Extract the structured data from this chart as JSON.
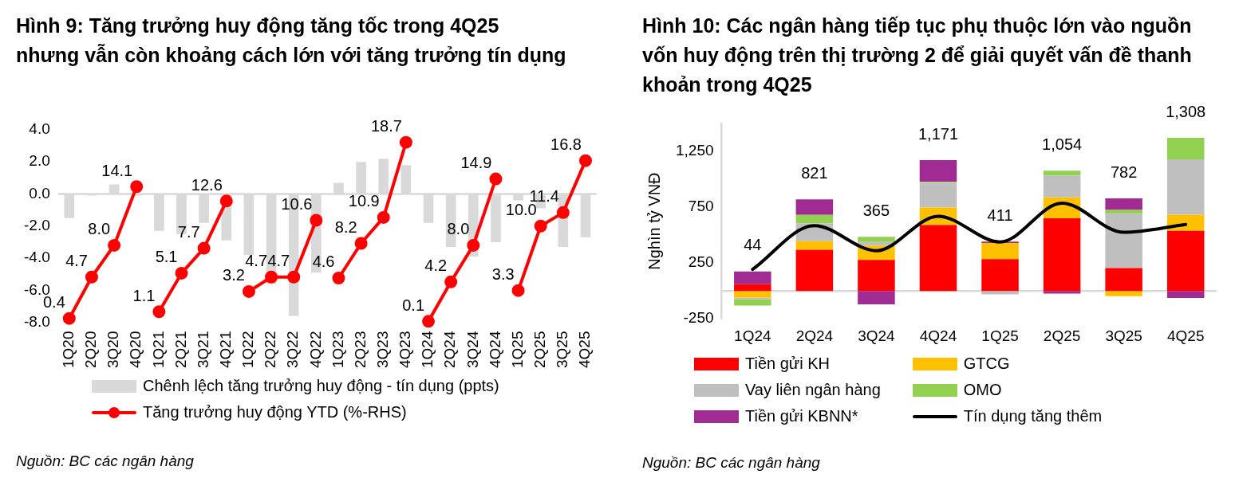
{
  "chart_data": [
    {
      "type": "bar",
      "title": "Hình 9: Tăng trưởng huy động tăng tốc trong 4Q25 nhưng vẫn còn khoảng cách lớn với tăng trưởng tín dụng",
      "categories": [
        "1Q20",
        "2Q20",
        "3Q20",
        "4Q20",
        "1Q21",
        "2Q21",
        "3Q21",
        "4Q21",
        "1Q22",
        "2Q22",
        "3Q22",
        "4Q22",
        "1Q23",
        "2Q23",
        "3Q23",
        "4Q23",
        "1Q24",
        "2Q24",
        "3Q24",
        "4Q24",
        "1Q25",
        "2Q25",
        "3Q25",
        "4Q25"
      ],
      "series": [
        {
          "name": "Chênh lệch tăng trưởng huy động - tín dụng (ppts)",
          "color": "#d9d9d9",
          "values": [
            -1.5,
            -0.1,
            0.6,
            -0.1,
            -2.3,
            -2.5,
            -1.8,
            -2.9,
            -3.8,
            -5.6,
            -7.6,
            -4.9,
            0.7,
            2.0,
            2.2,
            1.8,
            -1.8,
            -3.3,
            -3.9,
            -3.0,
            -0.4,
            -0.9,
            -3.3,
            -2.7
          ]
        },
        {
          "name": "Tăng trưởng huy động YTD (%-RHS)",
          "type": "line",
          "axis": "y2",
          "color": "#ff0000",
          "marker": "circle",
          "values": [
            0.4,
            4.7,
            8.0,
            14.1,
            null,
            null,
            null,
            null,
            null,
            null,
            null,
            null,
            null,
            null,
            null,
            null,
            null,
            null,
            null,
            null,
            null,
            null,
            null,
            null
          ],
          "value_labels": [
            "0.4",
            "4.7",
            "8.0",
            "14.1",
            null,
            null,
            null,
            null,
            null,
            null,
            null,
            null,
            null,
            null,
            null,
            null,
            null,
            null,
            null,
            null,
            null,
            null,
            null,
            null
          ]
        },
        {
          "type": "line",
          "axis": "y2",
          "color": "#ff0000",
          "marker": "circle",
          "values": [
            null,
            null,
            null,
            null,
            1.1,
            5.1,
            7.7,
            12.6,
            null,
            null,
            null,
            null,
            null,
            null,
            null,
            null,
            null,
            null,
            null,
            null,
            null,
            null,
            null,
            null
          ],
          "value_labels": [
            null,
            null,
            null,
            null,
            "1.1",
            "5.1",
            "7.7",
            "12.6",
            null,
            null,
            null,
            null,
            null,
            null,
            null,
            null,
            null,
            null,
            null,
            null,
            null,
            null,
            null,
            null
          ]
        },
        {
          "type": "line",
          "axis": "y2",
          "color": "#ff0000",
          "marker": "circle",
          "values": [
            null,
            null,
            null,
            null,
            null,
            null,
            null,
            null,
            3.2,
            4.7,
            4.7,
            10.6,
            null,
            null,
            null,
            null,
            null,
            null,
            null,
            null,
            null,
            null,
            null,
            null
          ],
          "value_labels": [
            null,
            null,
            null,
            null,
            null,
            null,
            null,
            null,
            "3.2",
            "4.7",
            "4.7",
            "10.6",
            null,
            null,
            null,
            null,
            null,
            null,
            null,
            null,
            null,
            null,
            null,
            null
          ]
        },
        {
          "type": "line",
          "axis": "y2",
          "color": "#ff0000",
          "marker": "circle",
          "values": [
            null,
            null,
            null,
            null,
            null,
            null,
            null,
            null,
            null,
            null,
            null,
            null,
            4.6,
            8.2,
            10.9,
            18.7,
            null,
            null,
            null,
            null,
            null,
            null,
            null,
            null
          ],
          "value_labels": [
            null,
            null,
            null,
            null,
            null,
            null,
            null,
            null,
            null,
            null,
            null,
            null,
            "4.6",
            "8.2",
            "10.9",
            "18.7",
            null,
            null,
            null,
            null,
            null,
            null,
            null,
            null
          ]
        },
        {
          "type": "line",
          "axis": "y2",
          "color": "#ff0000",
          "marker": "circle",
          "values": [
            null,
            null,
            null,
            null,
            null,
            null,
            null,
            null,
            null,
            null,
            null,
            null,
            null,
            null,
            null,
            null,
            0.1,
            4.2,
            8.0,
            14.9,
            null,
            null,
            null,
            null
          ],
          "value_labels": [
            null,
            null,
            null,
            null,
            null,
            null,
            null,
            null,
            null,
            null,
            null,
            null,
            null,
            null,
            null,
            null,
            "0.1",
            "4.2",
            "8.0",
            "14.9",
            null,
            null,
            null,
            null
          ]
        },
        {
          "type": "line",
          "axis": "y2",
          "color": "#ff0000",
          "marker": "circle",
          "values": [
            null,
            null,
            null,
            null,
            null,
            null,
            null,
            null,
            null,
            null,
            null,
            null,
            null,
            null,
            null,
            null,
            null,
            null,
            null,
            null,
            3.3,
            10.0,
            11.4,
            16.8
          ],
          "value_labels": [
            null,
            null,
            null,
            null,
            null,
            null,
            null,
            null,
            null,
            null,
            null,
            null,
            null,
            null,
            null,
            null,
            null,
            null,
            null,
            null,
            "3.3",
            "10.0",
            "11.4",
            "16.8"
          ]
        }
      ],
      "ylim": [
        -8,
        4
      ],
      "yticks": [
        {
          "value": -8,
          "label": "-8.0"
        },
        {
          "value": -6,
          "label": "-6.0"
        },
        {
          "value": -4,
          "label": "-4.0"
        },
        {
          "value": -2,
          "label": "-2.0"
        },
        {
          "value": 0,
          "label": "0.0"
        },
        {
          "value": 2,
          "label": "2.0"
        },
        {
          "value": 4,
          "label": "4.0"
        }
      ],
      "legend": "bottom",
      "annotations": [
        "Nguồn: BC các ngân hàng"
      ]
    },
    {
      "type": "bar",
      "title": "Hình 10: Các ngân hàng tiếp tục phụ thuộc lớn vào nguồn vốn huy động trên thị trường 2 để giải quyết vấn đề thanh khoản trong 4Q25",
      "ylabel": "Nghìn tỷ VNĐ",
      "stacked": true,
      "categories": [
        "1Q24",
        "2Q24",
        "3Q24",
        "4Q24",
        "1Q25",
        "2Q25",
        "3Q25",
        "4Q25"
      ],
      "series": [
        {
          "name": "Tiền gửi KH",
          "color": "#ff0000",
          "values": [
            60,
            368,
            277,
            590,
            285,
            650,
            204,
            538
          ]
        },
        {
          "name": "GTCG",
          "color": "#ffc000",
          "values": [
            -60,
            78,
            130,
            157,
            144,
            188,
            -47,
            144
          ]
        },
        {
          "name": "Vay liên ngân hàng",
          "color": "#bfbfbf",
          "values": [
            -15,
            159,
            31,
            221,
            -31,
            195,
            487,
            496
          ]
        },
        {
          "name": "OMO",
          "color": "#92d050",
          "values": [
            -56,
            76,
            47,
            10,
            0,
            44,
            34,
            193
          ]
        },
        {
          "name": "Tiền gửi KBNN*",
          "color": "#a02b93",
          "values": [
            115,
            140,
            -120,
            193,
            13,
            -23,
            104,
            -63
          ]
        },
        {
          "name": "Tín dụng tăng thêm",
          "type": "line",
          "color": "#000000",
          "marker": "none",
          "values": [
            193,
            585,
            360,
            669,
            439,
            787,
            525,
            596
          ]
        }
      ],
      "totals": [
        "44",
        "821",
        "365",
        "1,171",
        "411",
        "1,054",
        "782",
        "1,308"
      ],
      "ylim": [
        -250,
        1500
      ],
      "yticks": [
        -250,
        250,
        750,
        {
          "value": 1250,
          "label": "1,250"
        }
      ],
      "legend": "bottom",
      "annotations": [
        "Nguồn: BC các ngân hàng"
      ]
    }
  ]
}
